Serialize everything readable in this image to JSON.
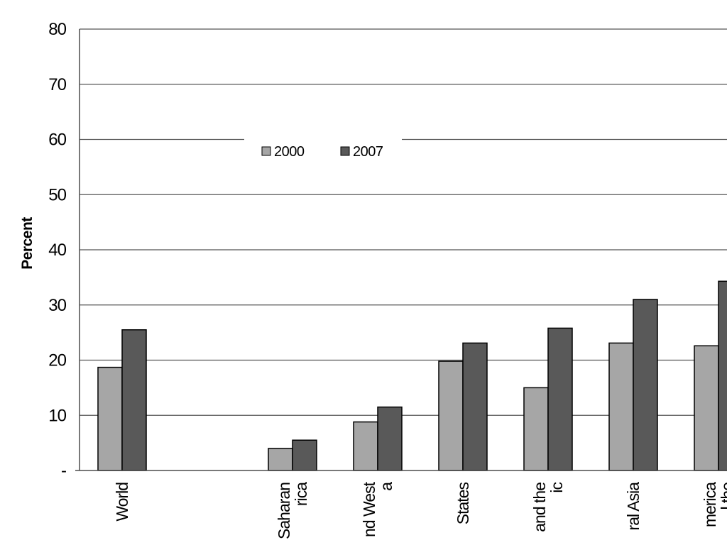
{
  "chart_data": {
    "type": "bar",
    "title": "",
    "ylabel": "Percent",
    "xlabel": "",
    "ylim": [
      0,
      80
    ],
    "yticks": [
      {
        "value": 0,
        "label": "-"
      },
      {
        "value": 10,
        "label": "10"
      },
      {
        "value": 20,
        "label": "20"
      },
      {
        "value": 30,
        "label": "30"
      },
      {
        "value": 40,
        "label": "40"
      },
      {
        "value": 50,
        "label": "50"
      },
      {
        "value": 60,
        "label": "60"
      },
      {
        "value": 70,
        "label": "70"
      },
      {
        "value": 80,
        "label": "80"
      }
    ],
    "grid": true,
    "legend_position": "top-center",
    "categories": [
      {
        "key": "world",
        "lines": [
          "World"
        ],
        "present": true
      },
      {
        "key": "blank",
        "lines": [],
        "present": false
      },
      {
        "key": "ssa",
        "lines": [
          "Saharan",
          "rica"
        ],
        "present": true
      },
      {
        "key": "sw-asia",
        "lines": [
          "nd West",
          "a"
        ],
        "present": true
      },
      {
        "key": "arab",
        "lines": [
          "States"
        ],
        "present": true
      },
      {
        "key": "east-asia",
        "lines": [
          "and the",
          "ic"
        ],
        "present": true
      },
      {
        "key": "central-asia",
        "lines": [
          "ral Asia"
        ],
        "present": true
      },
      {
        "key": "latin-america",
        "lines": [
          "merica",
          "l the"
        ],
        "present": true
      }
    ],
    "series": [
      {
        "name": "2000",
        "color": "#a6a6a6",
        "values": [
          18.7,
          null,
          4.0,
          8.8,
          19.8,
          15.0,
          23.1,
          22.6
        ]
      },
      {
        "name": "2007",
        "color": "#595959",
        "values": [
          25.5,
          null,
          5.5,
          11.5,
          23.1,
          25.8,
          31.0,
          34.3
        ]
      }
    ]
  }
}
